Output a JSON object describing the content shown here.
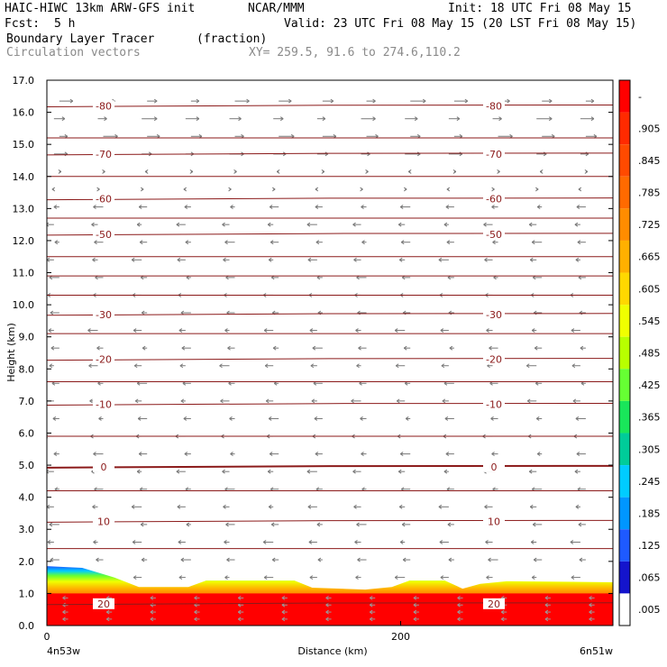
{
  "header": {
    "model": "HAIC-HIWC 13km ARW-GFS init",
    "org": "NCAR/MMM",
    "init": "Init: 18 UTC Fri 08 May 15",
    "fcst_label": "Fcst:",
    "fcst_value": "5 h",
    "valid": "Valid: 23 UTC Fri 08 May 15 (20 LST Fri 08 May 15)",
    "field": "Boundary Layer Tracer",
    "units": "(fraction)",
    "vectors": "Circulation vectors",
    "xy": "XY= 259.5, 91.6 to 274.6,110.2"
  },
  "colors": {
    "contour": "#8b1a1a",
    "vector": "#777777",
    "frame": "#000000"
  },
  "chart_data": {
    "type": "heatmap",
    "ylabel": "Height (km)",
    "xlabel": "Distance (km)",
    "x_left_label": "4n53w",
    "x_right_label": "6n51w",
    "xlim": [
      0,
      320
    ],
    "ylim": [
      0,
      17
    ],
    "yticks": [
      "0.0",
      "1.0",
      "2.0",
      "3.0",
      "4.0",
      "5.0",
      "6.0",
      "7.0",
      "8.0",
      "9.0",
      "10.0",
      "11.0",
      "12.0",
      "13.0",
      "14.0",
      "15.0",
      "16.0",
      "17.0"
    ],
    "xticks": [
      {
        "value": 0,
        "label": "0"
      },
      {
        "value": 200,
        "label": "200"
      }
    ],
    "isotherms": [
      {
        "label": "-80",
        "height": 16.2
      },
      {
        "label": "-70",
        "height": 14.7
      },
      {
        "label": "-60",
        "height": 13.3
      },
      {
        "label": "-50",
        "height": 12.2
      },
      {
        "label": "-30",
        "height": 9.7
      },
      {
        "label": "-20",
        "height": 8.3
      },
      {
        "label": "-10",
        "height": 6.9
      },
      {
        "label": "0",
        "height": 4.95
      },
      {
        "label": "10",
        "height": 3.25
      },
      {
        "label": "20",
        "height": 0.68
      }
    ],
    "tracer_top_km": [
      [
        0,
        1.85
      ],
      [
        20,
        1.8
      ],
      [
        38,
        1.5
      ],
      [
        52,
        1.2
      ],
      [
        80,
        1.2
      ],
      [
        90,
        1.4
      ],
      [
        140,
        1.4
      ],
      [
        150,
        1.18
      ],
      [
        180,
        1.12
      ],
      [
        195,
        1.2
      ],
      [
        205,
        1.4
      ],
      [
        225,
        1.4
      ],
      [
        235,
        1.15
      ],
      [
        245,
        1.3
      ],
      [
        260,
        1.38
      ],
      [
        320,
        1.35
      ]
    ],
    "colorbar": {
      "labels": [
        "-",
        ".905",
        ".845",
        ".785",
        ".725",
        ".665",
        ".605",
        ".545",
        ".485",
        ".425",
        ".365",
        ".305",
        ".245",
        ".185",
        ".125",
        ".065",
        ".005"
      ],
      "colors": [
        "#ff0000",
        "#ff2a00",
        "#ff4a00",
        "#ff6a00",
        "#ff8c00",
        "#ffb000",
        "#ffd800",
        "#f0ff00",
        "#b8ff00",
        "#66ff33",
        "#19e65a",
        "#00cc99",
        "#00ccff",
        "#0096ff",
        "#1e5aff",
        "#1414cc",
        "#ffffff"
      ]
    }
  }
}
